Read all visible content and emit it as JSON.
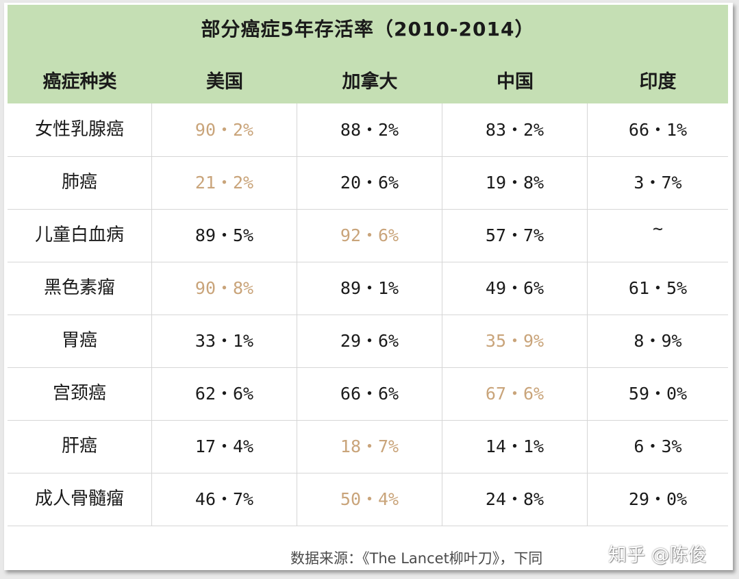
{
  "title": "部分癌症5年存活率（2010-2014）",
  "columns": [
    "癌症种类",
    "美国",
    "加拿大",
    "中国",
    "印度"
  ],
  "highlight_color": "#c9a47a",
  "rows": [
    {
      "name": "女性乳腺癌",
      "values": [
        "90・2%",
        "88・2%",
        "83・2%",
        "66・1%"
      ],
      "highlight": [
        true,
        false,
        false,
        false
      ]
    },
    {
      "name": "肺癌",
      "values": [
        "21・2%",
        "20・6%",
        "19・8%",
        "3・7%"
      ],
      "highlight": [
        true,
        false,
        false,
        false
      ]
    },
    {
      "name": "儿童白血病",
      "values": [
        "89・5%",
        "92・6%",
        "57・7%",
        "~"
      ],
      "highlight": [
        false,
        true,
        false,
        false
      ]
    },
    {
      "name": "黑色素瘤",
      "values": [
        "90・8%",
        "89・1%",
        "49・6%",
        "61・5%"
      ],
      "highlight": [
        true,
        false,
        false,
        false
      ]
    },
    {
      "name": "胃癌",
      "values": [
        "33・1%",
        "29・6%",
        "35・9%",
        "8・9%"
      ],
      "highlight": [
        false,
        false,
        true,
        false
      ]
    },
    {
      "name": "宫颈癌",
      "values": [
        "62・6%",
        "66・6%",
        "67・6%",
        "59・0%"
      ],
      "highlight": [
        false,
        false,
        true,
        false
      ]
    },
    {
      "name": "肝癌",
      "values": [
        "17・4%",
        "18・7%",
        "14・1%",
        "6・3%"
      ],
      "highlight": [
        false,
        true,
        false,
        false
      ]
    },
    {
      "name": "成人骨髓瘤",
      "values": [
        "46・7%",
        "50・4%",
        "24・8%",
        "29・0%"
      ],
      "highlight": [
        false,
        true,
        false,
        false
      ]
    }
  ],
  "source": "数据来源：《The Lancet柳叶刀》，下同",
  "watermark": "知乎 @陈俊"
}
